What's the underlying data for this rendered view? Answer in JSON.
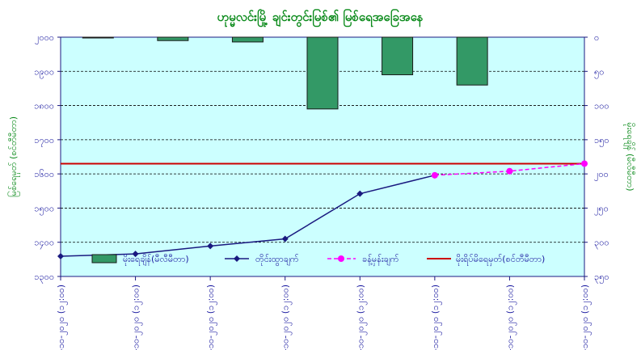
{
  "chart_data": {
    "type": "bar+line",
    "title": "ဟုမ္မလင်းမြို့ ချင်းတွင်းမြစ်၏ မြစ်ရေအခြေအနေ",
    "ylabel_left": "မြစ်ရေမှတ် (စင်တီမီတာ)",
    "ylabel_right": "မိုးရေချိန် (မီလီမီတာ)",
    "categories": [
      "၁၉-၁၀-၂၀၂၀ (၁၂:၀၀)",
      "၂၀-၁၀-၂၀၂၀ (၁၂:၀၀)",
      "၂၁-၁၀-၂၀၂၀ (၁၂:၀၀)",
      "၂၂-၁၀-၂၀၂၀ (၁၂:၀၀)",
      "၂၃-၁၀-၂၀၂၀ (၁၂:၀၀)",
      "၂၄-၁၀-၂၀၂၀ (၁၂:၀၀)",
      "၂၅-၁၀-၂၀၂၀ (၁၂:၀၀)",
      "၂၆-၁၀-၂၀၂၀ (၁၂:၀၀)"
    ],
    "ylim_left": [
      1300,
      2000
    ],
    "yticks_left": [
      "၁၃၀၀",
      "၁၄၀၀",
      "၁၅၀၀",
      "၁၆၀၀",
      "၁၇၀၀",
      "၁၈၀၀",
      "၁၉၀၀",
      "၂၀၀၀"
    ],
    "ylim_right": [
      350,
      0
    ],
    "yticks_right": [
      "၀",
      "၅၀",
      "၁၀၀",
      "၁၅၀",
      "၂၀၀",
      "၂၅၀",
      "၃၀၀",
      "၃၅၀"
    ],
    "series": [
      {
        "name": "မိုးရေချိန်(မီလီမီတာ)",
        "kind": "bar",
        "axis": "right",
        "color": "#339966",
        "values": [
          1,
          5,
          7,
          105,
          55,
          70,
          null,
          null
        ]
      },
      {
        "name": "တိုင်းထွာချက်",
        "kind": "line",
        "axis": "left",
        "color": "#1a1a80",
        "marker": "diamond",
        "values": [
          1359,
          1366,
          1389,
          1410,
          1542,
          1596,
          null,
          null
        ]
      },
      {
        "name": "ခန့်မှန်းချက်",
        "kind": "line-dashed",
        "axis": "left",
        "color": "#ff00ff",
        "marker": "circle",
        "values": [
          null,
          null,
          null,
          null,
          null,
          1596,
          1608,
          1630
        ]
      },
      {
        "name": "မိုးရိပ်မိရေမှတ်(စင်တီမီတာ)",
        "kind": "hline",
        "axis": "left",
        "color": "#cc0000",
        "value": 1630
      }
    ],
    "grid": true,
    "plot_background": "#ccffff",
    "legend_position": "bottom-inside"
  }
}
